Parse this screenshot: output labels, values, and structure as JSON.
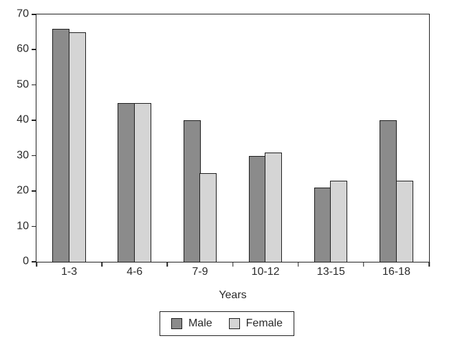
{
  "chart_data": {
    "type": "bar",
    "title": "",
    "xlabel": "Years",
    "ylabel": "",
    "categories": [
      "1-3",
      "4-6",
      "7-9",
      "10-12",
      "13-15",
      "16-18"
    ],
    "series": [
      {
        "name": "Male",
        "color": "#8b8b8b",
        "values": [
          66,
          45,
          40,
          30,
          21,
          40
        ]
      },
      {
        "name": "Female",
        "color": "#d5d5d5",
        "values": [
          65,
          45,
          25,
          31,
          23,
          23
        ]
      }
    ],
    "ylim": [
      0,
      70
    ],
    "yticks": [
      "0",
      "10",
      "20",
      "30",
      "40",
      "50",
      "60",
      "70"
    ],
    "grid": false,
    "legend_position": "bottom",
    "colors": {
      "axis": "#1f1f1f",
      "bar_border": "#1c1c1c",
      "text": "#2a2a2a",
      "background": "#ffffff"
    }
  }
}
